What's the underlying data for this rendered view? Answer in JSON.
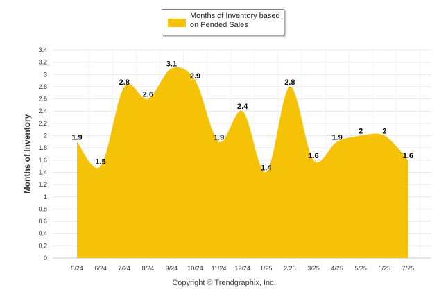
{
  "legend": {
    "label": "Months of Inventory based on Pended Sales"
  },
  "credit": "Copyright © Trendgraphix, Inc.",
  "colors": {
    "fill": "#f5c207",
    "grid": "#e6e6e6",
    "axis": "#c8c8c8",
    "label": "#000000"
  },
  "chart_data": {
    "type": "area",
    "title": "",
    "xlabel": "",
    "ylabel": "Months of Inventory",
    "categories": [
      "5/24",
      "6/24",
      "7/24",
      "8/24",
      "9/24",
      "10/24",
      "11/24",
      "12/24",
      "1/25",
      "2/25",
      "3/25",
      "4/25",
      "5/25",
      "6/25",
      "7/25"
    ],
    "series": [
      {
        "name": "Months of Inventory based on Pended Sales",
        "values": [
          1.9,
          1.5,
          2.8,
          2.6,
          3.1,
          2.9,
          1.9,
          2.4,
          1.4,
          2.8,
          1.6,
          1.9,
          2,
          2,
          1.6
        ]
      }
    ],
    "ylim": [
      0,
      3.4
    ],
    "yticks": [
      "0",
      "0.2",
      "0.4",
      "0.6",
      "0.8",
      "1",
      "1.2",
      "1.4",
      "1.6",
      "1.8",
      "2",
      "2.2",
      "2.4",
      "2.6",
      "2.8",
      "3",
      "3.2",
      "3.4"
    ],
    "data_labels": [
      "1.9",
      "1.5",
      "2.8",
      "2.6",
      "3.1",
      "2.9",
      "1.9",
      "2.4",
      "1.4",
      "2.8",
      "1.6",
      "1.9",
      "2",
      "2",
      "1.6"
    ],
    "grid": true,
    "legend_position": "top-center"
  }
}
